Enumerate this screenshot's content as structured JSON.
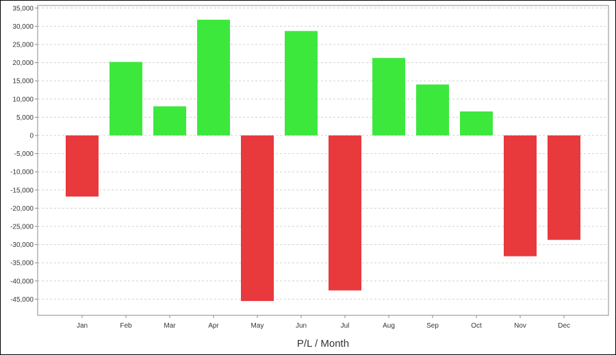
{
  "chart_data": {
    "type": "bar",
    "title": "",
    "xlabel": "P/L / Month",
    "ylabel": "",
    "categories": [
      "Jan",
      "Feb",
      "Mar",
      "Apr",
      "May",
      "Jun",
      "Jul",
      "Aug",
      "Sep",
      "Oct",
      "Nov",
      "Dec"
    ],
    "values": [
      -16800,
      20200,
      8000,
      31800,
      -45500,
      28700,
      -42600,
      21300,
      14000,
      6600,
      -33200,
      -28700
    ],
    "ylim": [
      -48000,
      35000
    ],
    "yticks": [
      35000,
      30000,
      25000,
      20000,
      15000,
      10000,
      5000,
      0,
      -5000,
      -10000,
      -15000,
      -20000,
      -25000,
      -30000,
      -35000,
      -40000,
      -45000
    ],
    "ytick_labels": [
      "35,000",
      "30,000",
      "25,000",
      "20,000",
      "15,000",
      "10,000",
      "5,000",
      "0",
      "-5,000",
      "-10,000",
      "-15,000",
      "-20,000",
      "-25,000",
      "-30,000",
      "-35,000",
      "-40,000",
      "-45,000"
    ],
    "grid": true,
    "legend": "none",
    "colors": {
      "positive": "#3de83d",
      "negative": "#e8393d",
      "grid": "#cfcfcf",
      "axis": "#888888"
    }
  }
}
